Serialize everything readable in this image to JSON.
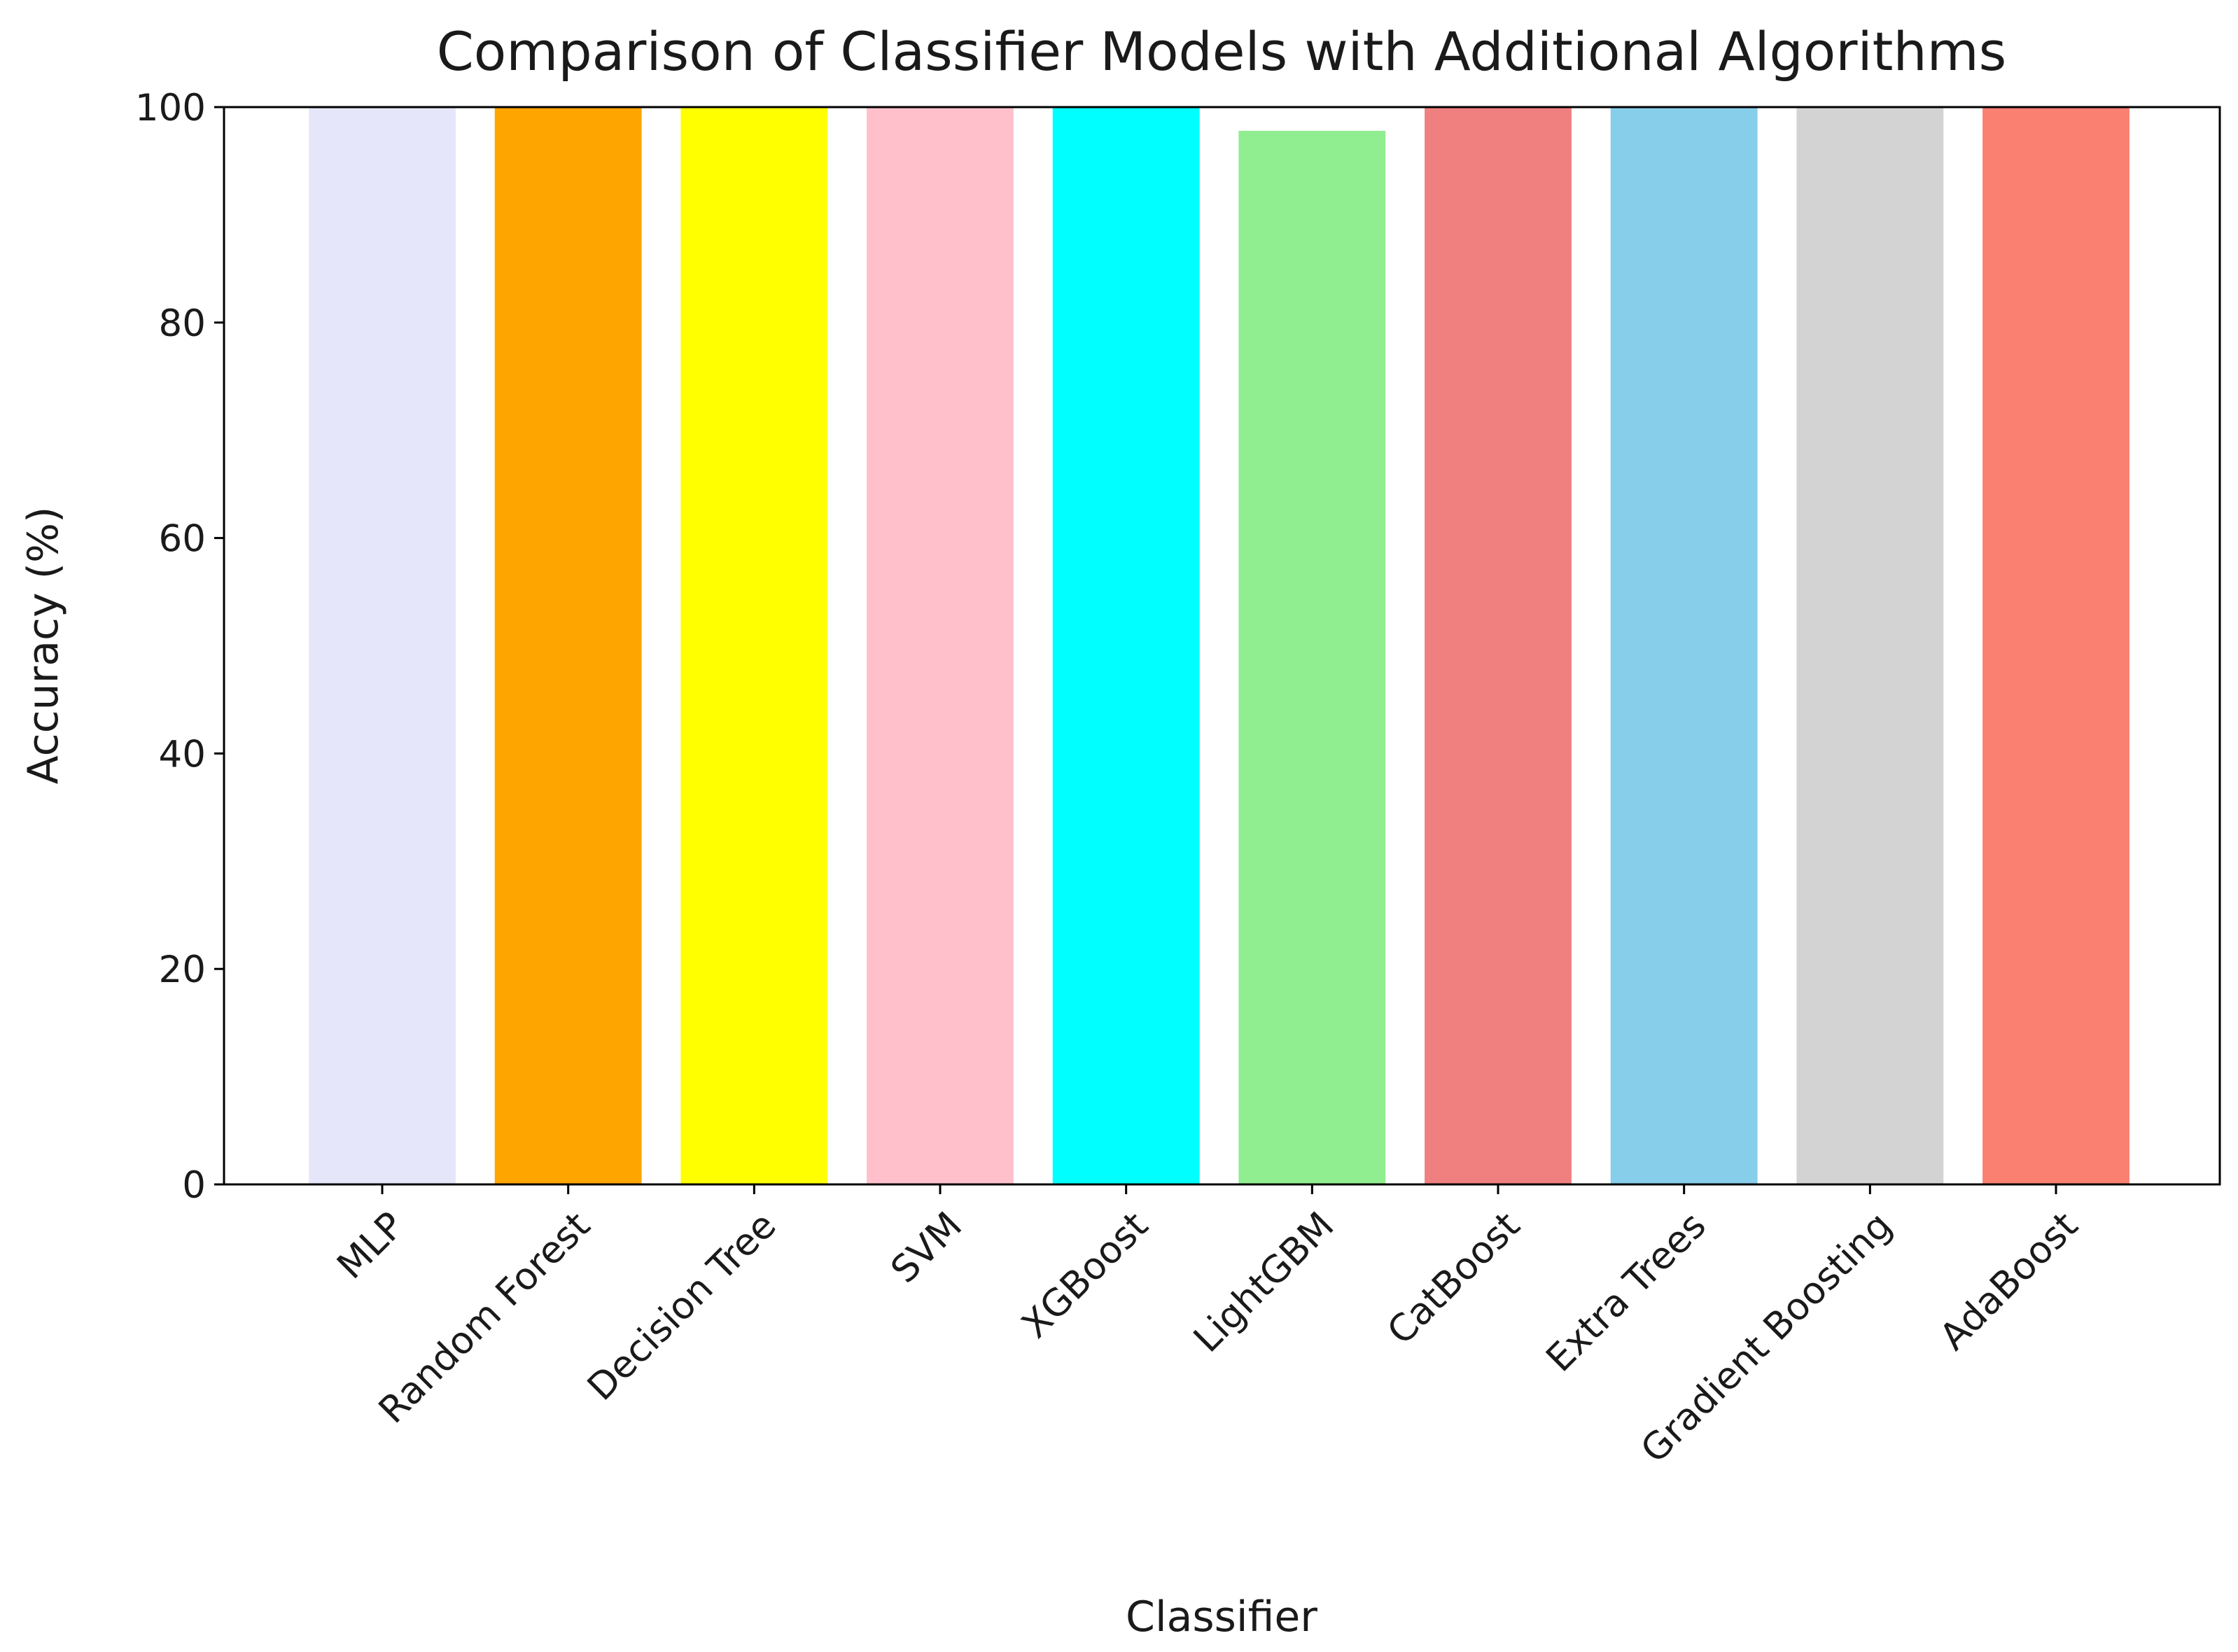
{
  "chart_data": {
    "type": "bar",
    "title": "Comparison of Classifier Models with Additional Algorithms",
    "x_label": "Classifier",
    "y_label": "Accuracy (%)",
    "categories": [
      "MLP",
      "Random Forest",
      "Decision Tree",
      "SVM",
      "XGBoost",
      "LightGBM",
      "CatBoost",
      "Extra Trees",
      "Gradient Boosting",
      "AdaBoost"
    ],
    "values": [
      100,
      100,
      100,
      100,
      100,
      97.8,
      100,
      100,
      100,
      100
    ],
    "colors": [
      "#e6e6fa",
      "#ffa500",
      "#ffff00",
      "#ffc0cb",
      "#00ffff",
      "#90ee90",
      "#f08080",
      "#87ceeb",
      "#d3d3d3",
      "#fa8072"
    ],
    "ylim": [
      0,
      100
    ],
    "yticks": [
      0,
      20,
      40,
      60,
      80,
      100
    ],
    "grid": false
  }
}
